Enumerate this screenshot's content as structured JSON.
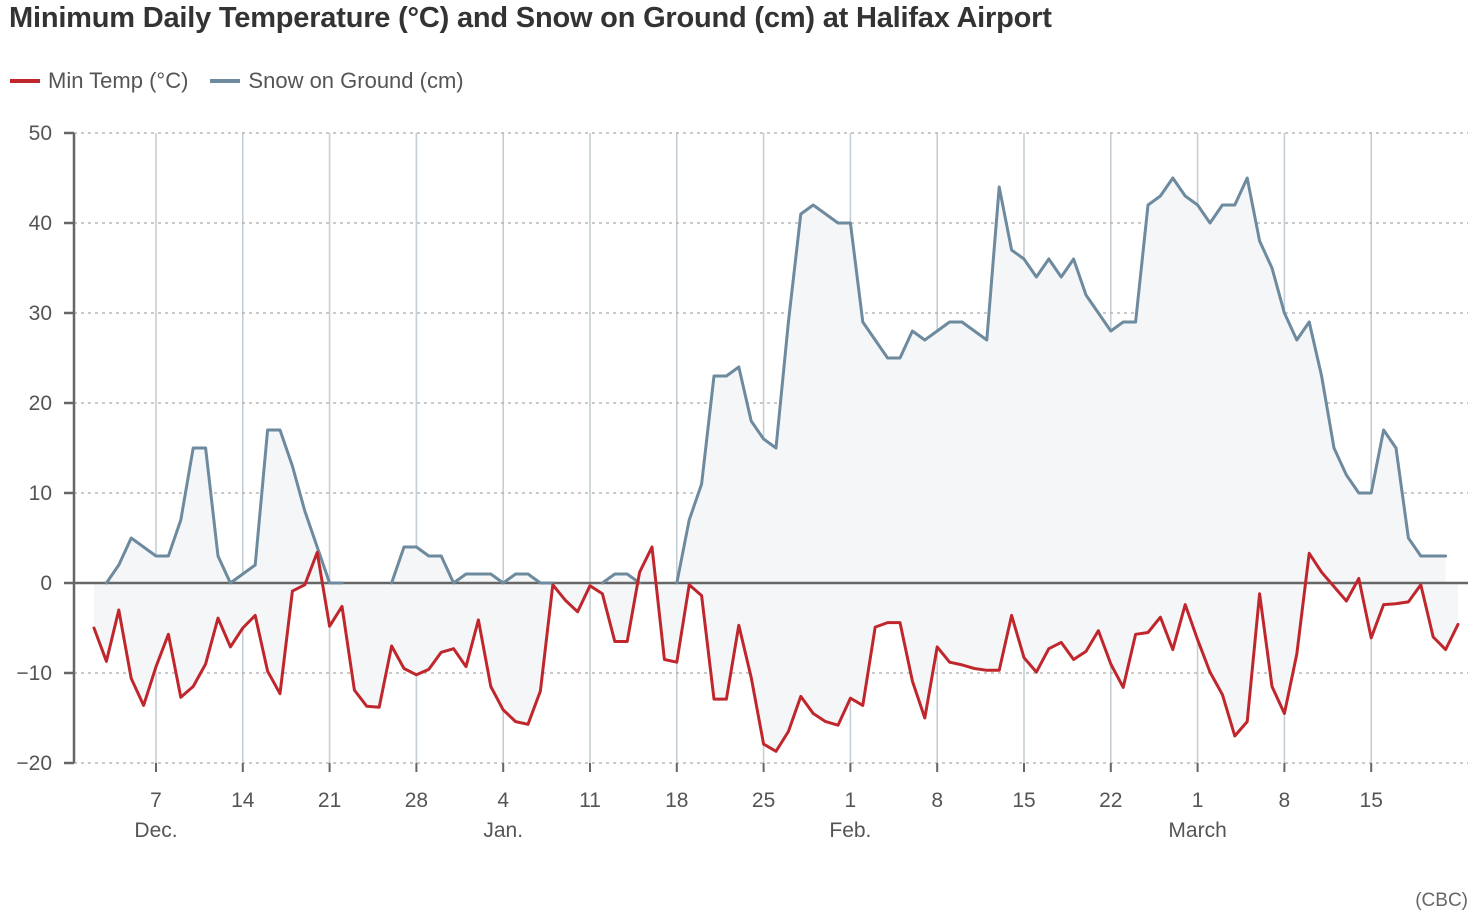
{
  "title": "Minimum Daily Temperature (°C) and Snow on Ground (cm) at Halifax Airport",
  "source": "(CBC)",
  "colors": {
    "temp": "#c0272d",
    "snow": "#6d8a9e",
    "snow_fill": "#f4f6f8",
    "grid": "#aaaaaa",
    "week_line": "#c5ced4",
    "axis": "#666666",
    "text": "#555555",
    "title": "#333333"
  },
  "chart_data": {
    "type": "line",
    "title": "Minimum Daily Temperature (°C) and Snow on Ground (cm) at Halifax Airport",
    "xlabel": "",
    "ylabel": "",
    "ylim": [
      -20,
      50
    ],
    "yticks": [
      50,
      40,
      30,
      20,
      10,
      0,
      -10,
      -20
    ],
    "x_start": "Dec. 2",
    "x_ticks": [
      {
        "day": 5,
        "label": "7"
      },
      {
        "day": 12,
        "label": "14"
      },
      {
        "day": 19,
        "label": "21"
      },
      {
        "day": 26,
        "label": "28"
      },
      {
        "day": 33,
        "label": "4"
      },
      {
        "day": 40,
        "label": "11"
      },
      {
        "day": 47,
        "label": "18"
      },
      {
        "day": 54,
        "label": "25"
      },
      {
        "day": 61,
        "label": "1"
      },
      {
        "day": 68,
        "label": "8"
      },
      {
        "day": 75,
        "label": "15"
      },
      {
        "day": 82,
        "label": "22"
      },
      {
        "day": 89,
        "label": "1"
      },
      {
        "day": 96,
        "label": "8"
      },
      {
        "day": 103,
        "label": "15"
      }
    ],
    "month_labels": [
      {
        "day": 5,
        "label": "Dec."
      },
      {
        "day": 33,
        "label": "Jan."
      },
      {
        "day": 61,
        "label": "Feb."
      },
      {
        "day": 89,
        "label": "March"
      }
    ],
    "grid": true,
    "legend_position": "top-left",
    "series": [
      {
        "name": "Min Temp (°C)",
        "color": "#c0272d",
        "values": [
          -5.0,
          -8.7,
          -3.0,
          -10.6,
          -13.6,
          -9.3,
          -5.7,
          -12.7,
          -11.5,
          -9.0,
          -3.9,
          -7.1,
          -5.0,
          -3.6,
          -9.8,
          -12.3,
          -0.9,
          -0.2,
          3.4,
          -4.8,
          -2.6,
          -11.9,
          -13.7,
          -13.8,
          -7.0,
          -9.5,
          -10.2,
          -9.6,
          -7.7,
          -7.3,
          -9.3,
          -4.1,
          -11.5,
          -14.1,
          -15.4,
          -15.7,
          -12.0,
          -0.2,
          -1.9,
          -3.2,
          -0.3,
          -1.2,
          -6.5,
          -6.5,
          1.2,
          4.0,
          -8.5,
          -8.8,
          -0.2,
          -1.4,
          -12.9,
          -12.9,
          -4.7,
          -10.5,
          -17.9,
          -18.7,
          -16.5,
          -12.6,
          -14.5,
          -15.4,
          -15.8,
          -12.8,
          -13.6,
          -4.9,
          -4.4,
          -4.4,
          -10.9,
          -15.0,
          -7.1,
          -8.8,
          -9.1,
          -9.5,
          -9.7,
          -9.7,
          -3.6,
          -8.3,
          -9.9,
          -7.3,
          -6.6,
          -8.5,
          -7.6,
          -5.3,
          -9.0,
          -11.6,
          -5.7,
          -5.5,
          -3.8,
          -7.4,
          -2.4,
          -6.3,
          -9.9,
          -12.4,
          -17.0,
          -15.4,
          -1.2,
          -11.5,
          -14.5,
          -7.9,
          3.3,
          1.2,
          -0.4,
          -2.0,
          0.5,
          -6.1,
          -2.4,
          -2.3,
          -2.1,
          -0.2,
          -6.0,
          -7.4,
          -4.6
        ]
      },
      {
        "name": "Snow on Ground (cm)",
        "color": "#6d8a9e",
        "values": [
          null,
          0,
          2,
          5,
          4,
          3,
          3,
          7,
          15,
          15,
          3,
          0,
          1,
          2,
          17,
          17,
          13,
          8,
          4,
          0,
          0,
          null,
          null,
          null,
          0,
          4,
          4,
          3,
          3,
          0,
          1,
          1,
          1,
          0,
          1,
          1,
          0,
          0,
          null,
          null,
          null,
          0,
          1,
          1,
          0,
          null,
          null,
          0,
          7,
          11,
          23,
          23,
          24,
          18,
          16,
          15,
          29,
          41,
          42,
          41,
          40,
          40,
          29,
          27,
          25,
          25,
          28,
          27,
          28,
          29,
          29,
          28,
          27,
          44,
          37,
          36,
          34,
          36,
          34,
          36,
          32,
          30,
          28,
          29,
          29,
          42,
          43,
          45,
          43,
          42,
          40,
          42,
          42,
          45,
          38,
          35,
          30,
          27,
          29,
          23,
          15,
          12,
          10,
          10,
          17,
          15,
          5,
          3,
          3,
          3
        ]
      }
    ]
  },
  "legend": [
    {
      "label": "Min Temp (°C)",
      "color": "#c0272d"
    },
    {
      "label": "Snow on Ground (cm)",
      "color": "#6d8a9e"
    }
  ]
}
